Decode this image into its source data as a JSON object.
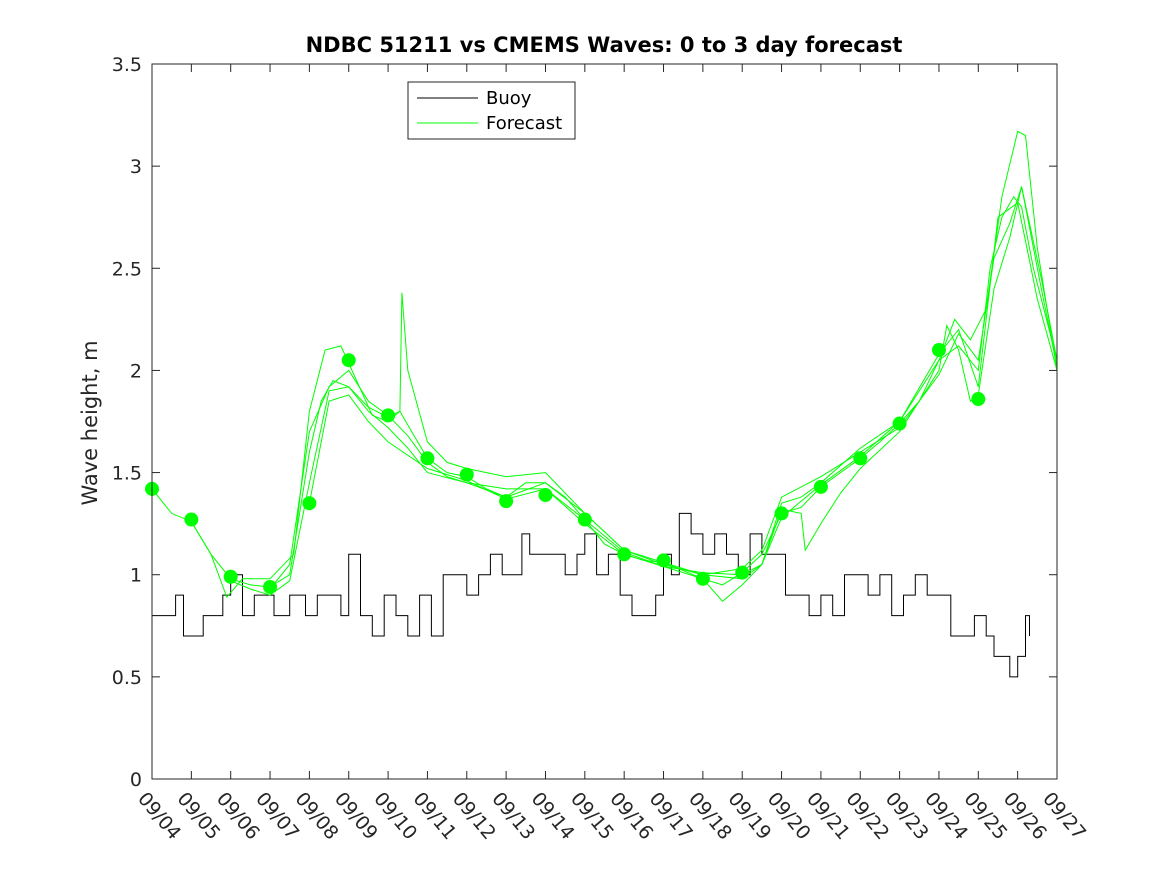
{
  "chart_data": {
    "type": "line",
    "title": "NDBC 51211 vs CMEMS Waves: 0 to 3 day forecast",
    "xlabel": "",
    "ylabel": "Wave height, m",
    "ylim": [
      0,
      3.5
    ],
    "yticks": [
      "0",
      "0.5",
      "1",
      "1.5",
      "2",
      "2.5",
      "3",
      "3.5"
    ],
    "xlim_day": [
      4,
      27
    ],
    "xticks": [
      "09/04",
      "09/05",
      "09/06",
      "09/07",
      "09/08",
      "09/09",
      "09/10",
      "09/11",
      "09/12",
      "09/13",
      "09/14",
      "09/15",
      "09/16",
      "09/17",
      "09/18",
      "09/19",
      "09/20",
      "09/21",
      "09/22",
      "09/23",
      "09/24",
      "09/25",
      "09/26",
      "09/27"
    ],
    "grid": false,
    "legend": {
      "position": "top",
      "entries": [
        "Buoy",
        "Forecast"
      ]
    },
    "colors": {
      "buoy": "#000000",
      "forecast": "#00ff00"
    },
    "series": [
      {
        "name": "Buoy",
        "x_day": [
          4.0,
          4.4,
          4.6,
          4.8,
          5.0,
          5.3,
          5.6,
          5.8,
          6.0,
          6.3,
          6.6,
          6.9,
          7.1,
          7.5,
          7.9,
          8.2,
          8.5,
          8.8,
          9.0,
          9.3,
          9.6,
          9.9,
          10.2,
          10.5,
          10.8,
          11.1,
          11.4,
          11.7,
          12.0,
          12.3,
          12.6,
          12.9,
          13.2,
          13.4,
          13.6,
          13.9,
          14.2,
          14.5,
          14.8,
          15.0,
          15.3,
          15.6,
          15.9,
          16.2,
          16.5,
          16.8,
          17.0,
          17.2,
          17.4,
          17.7,
          18.0,
          18.3,
          18.6,
          18.9,
          19.2,
          19.5,
          19.8,
          20.1,
          20.4,
          20.7,
          21.0,
          21.3,
          21.6,
          21.9,
          22.2,
          22.5,
          22.8,
          23.1,
          23.4,
          23.7,
          24.0,
          24.3,
          24.6,
          24.9,
          25.2,
          25.4,
          25.6,
          25.8,
          26.0,
          26.2,
          26.3
        ],
        "y": [
          0.8,
          0.8,
          0.9,
          0.7,
          0.7,
          0.8,
          0.8,
          0.9,
          1.0,
          0.8,
          0.9,
          0.9,
          0.8,
          0.9,
          0.8,
          0.9,
          0.9,
          0.8,
          1.1,
          0.8,
          0.7,
          0.9,
          0.8,
          0.7,
          0.9,
          0.7,
          1.0,
          1.0,
          0.9,
          1.0,
          1.1,
          1.0,
          1.0,
          1.2,
          1.1,
          1.1,
          1.1,
          1.0,
          1.1,
          1.2,
          1.0,
          1.1,
          0.9,
          0.8,
          0.8,
          0.9,
          1.1,
          1.0,
          1.3,
          1.2,
          1.1,
          1.2,
          1.1,
          1.0,
          1.2,
          1.1,
          1.1,
          0.9,
          0.9,
          0.8,
          0.9,
          0.8,
          1.0,
          1.0,
          0.9,
          1.0,
          0.8,
          0.9,
          1.0,
          0.9,
          0.9,
          0.7,
          0.7,
          0.8,
          0.7,
          0.6,
          0.6,
          0.5,
          0.6,
          0.8,
          0.7
        ]
      },
      {
        "name": "Forecast",
        "x_day": [
          4.0,
          4.5,
          5.0,
          5.5,
          6.0,
          6.5,
          7.0,
          7.5,
          8.0,
          8.3,
          8.6,
          9.0,
          9.5,
          10.0,
          10.3,
          10.6,
          11.0,
          11.5,
          12.0,
          12.5,
          13.0,
          13.5,
          14.0,
          14.5,
          15.0,
          15.5,
          16.0,
          16.5,
          17.0,
          17.5,
          18.0,
          18.5,
          19.0,
          19.5,
          20.0,
          20.5,
          21.0,
          21.5,
          22.0,
          22.5,
          23.0,
          23.5,
          24.0,
          24.5,
          25.0,
          25.3,
          25.6,
          25.9,
          26.1,
          26.4,
          27.0
        ],
        "y": [
          1.42,
          1.3,
          1.26,
          1.1,
          0.98,
          0.95,
          0.94,
          1.0,
          1.6,
          1.85,
          1.95,
          1.92,
          1.82,
          1.77,
          1.8,
          1.7,
          1.57,
          1.5,
          1.48,
          1.42,
          1.38,
          1.45,
          1.45,
          1.38,
          1.27,
          1.15,
          1.1,
          1.07,
          1.06,
          1.02,
          0.98,
          0.95,
          1.01,
          1.1,
          1.3,
          1.33,
          1.43,
          1.5,
          1.57,
          1.65,
          1.74,
          1.85,
          2.05,
          2.12,
          2.0,
          2.5,
          2.75,
          2.85,
          2.8,
          2.5,
          2.05
        ]
      },
      {
        "name": "Forecast",
        "x_day": [
          5.0,
          5.5,
          5.9,
          6.3,
          7.0,
          7.6,
          8.0,
          8.4,
          8.8,
          9.2,
          9.6,
          10.0,
          10.3,
          10.35,
          10.5,
          11.0,
          11.5,
          12.0,
          13.0,
          14.0,
          15.0,
          16.0,
          17.0,
          18.0,
          19.0,
          19.5,
          20.0,
          20.5,
          21.0,
          22.0,
          23.0,
          24.0,
          24.4,
          24.8,
          25.2,
          25.6,
          26.0,
          26.2,
          26.5,
          27.0
        ],
        "y": [
          1.26,
          1.1,
          0.89,
          0.98,
          0.98,
          1.1,
          1.8,
          2.1,
          2.12,
          1.95,
          1.78,
          1.75,
          1.8,
          2.38,
          2.0,
          1.65,
          1.55,
          1.52,
          1.48,
          1.5,
          1.3,
          1.12,
          1.05,
          1.0,
          0.98,
          1.05,
          1.35,
          1.38,
          1.45,
          1.62,
          1.75,
          2.05,
          2.25,
          2.15,
          2.3,
          2.85,
          3.17,
          3.15,
          2.6,
          2.0
        ]
      },
      {
        "name": "Forecast",
        "x_day": [
          6.0,
          6.5,
          7.0,
          7.5,
          8.0,
          8.5,
          9.0,
          9.5,
          10.0,
          10.5,
          11.0,
          12.0,
          13.0,
          14.0,
          15.0,
          16.0,
          17.0,
          18.0,
          18.5,
          19.0,
          19.5,
          20.0,
          20.5,
          20.6,
          21.0,
          21.5,
          22.0,
          23.0,
          24.0,
          24.2,
          24.5,
          24.8,
          25.0,
          25.4,
          25.8,
          26.1,
          26.6,
          27.0
        ],
        "y": [
          0.97,
          0.93,
          0.9,
          0.97,
          1.45,
          1.9,
          1.92,
          1.8,
          1.72,
          1.62,
          1.5,
          1.45,
          1.42,
          1.42,
          1.25,
          1.1,
          1.04,
          0.98,
          0.87,
          0.95,
          1.05,
          1.32,
          1.3,
          1.12,
          1.25,
          1.4,
          1.52,
          1.7,
          2.0,
          2.22,
          2.1,
          1.85,
          1.88,
          2.4,
          2.65,
          2.9,
          2.45,
          2.05
        ]
      },
      {
        "name": "Forecast",
        "x_day": [
          7.0,
          7.5,
          8.0,
          8.5,
          9.0,
          9.5,
          10.0,
          10.5,
          11.0,
          11.5,
          12.0,
          13.0,
          14.0,
          15.0,
          16.0,
          17.0,
          18.0,
          19.0,
          19.5,
          20.0,
          21.0,
          22.0,
          23.0,
          24.0,
          24.5,
          25.0,
          25.4,
          25.8,
          26.1,
          26.6,
          27.0
        ],
        "y": [
          0.93,
          1.05,
          1.7,
          1.92,
          2.0,
          1.85,
          1.78,
          1.68,
          1.55,
          1.48,
          1.45,
          1.38,
          1.45,
          1.3,
          1.12,
          1.06,
          1.0,
          1.03,
          1.12,
          1.38,
          1.48,
          1.6,
          1.72,
          1.98,
          2.18,
          2.05,
          2.55,
          2.72,
          2.9,
          2.4,
          2.02
        ]
      },
      {
        "name": "Forecast",
        "x_day": [
          8.0,
          8.5,
          9.0,
          9.5,
          10.0,
          11.0,
          12.0,
          13.0,
          14.0,
          15.0,
          16.0,
          17.0,
          18.0,
          19.0,
          19.5,
          20.0,
          21.0,
          22.0,
          23.0,
          24.0,
          24.5,
          25.0,
          25.5,
          26.0,
          26.5,
          27.0
        ],
        "y": [
          1.35,
          1.85,
          1.88,
          1.75,
          1.65,
          1.52,
          1.46,
          1.37,
          1.42,
          1.27,
          1.11,
          1.04,
          1.01,
          1.0,
          1.05,
          1.28,
          1.44,
          1.58,
          1.75,
          2.08,
          2.2,
          1.92,
          2.75,
          2.82,
          2.35,
          2.0
        ]
      }
    ],
    "forecast_points": {
      "name": "Forecast",
      "x_day": [
        4,
        5,
        6,
        7,
        8,
        9,
        10,
        11,
        12,
        13,
        14,
        15,
        16,
        17,
        18,
        19,
        20,
        21,
        22,
        23,
        24,
        25
      ],
      "y": [
        1.42,
        1.27,
        0.99,
        0.94,
        1.35,
        2.05,
        1.78,
        1.57,
        1.49,
        1.36,
        1.39,
        1.27,
        1.1,
        1.07,
        0.98,
        1.01,
        1.3,
        1.43,
        1.57,
        1.74,
        2.1,
        1.86
      ]
    }
  }
}
